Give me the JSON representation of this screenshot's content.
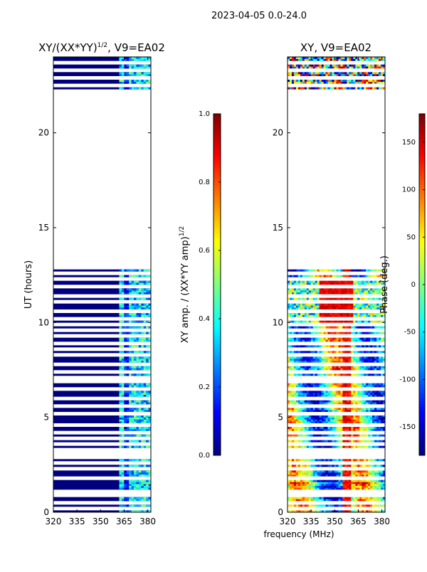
{
  "figure": {
    "suptitle": "2023-04-05 0.0-24.0",
    "shared_xlabel": "frequency (MHz)"
  },
  "chart_data": [
    {
      "type": "heatmap",
      "title": "XY/(XX*YY)",
      "title_superscript": "1/2",
      "title_suffix": ", V9=EA02",
      "xlabel": "",
      "ylabel": "UT (hours)",
      "xlim": [
        320,
        382
      ],
      "ylim": [
        0,
        24
      ],
      "x_ticks": [
        320,
        335,
        350,
        365,
        380
      ],
      "y_ticks": [
        0,
        5,
        10,
        15,
        20
      ],
      "data_gap_hours": [
        12.8,
        21.9
      ],
      "description_channels": "dark blue (~0) below ~362 MHz, higher values 362-382 MHz",
      "colorbar": {
        "label": "XY amp. / (XX*YY amp)",
        "label_superscript": "1/2",
        "range": [
          0.0,
          1.0
        ],
        "ticks": [
          "0.0",
          "0.2",
          "0.4",
          "0.6",
          "0.8",
          "1.0"
        ]
      }
    },
    {
      "type": "heatmap",
      "title": "XY, V9=EA02",
      "xlabel": "frequency (MHz)",
      "ylabel": "",
      "xlim": [
        320,
        382
      ],
      "ylim": [
        0,
        24
      ],
      "x_ticks": [
        320,
        335,
        350,
        365,
        380
      ],
      "y_ticks": [
        0,
        5,
        10,
        15,
        20
      ],
      "data_gap_hours": [
        12.8,
        21.9
      ],
      "colorbar": {
        "label": "Phase (deg.)",
        "range": [
          -180,
          180
        ],
        "ticks": [
          "-150",
          "-100",
          "-50",
          "0",
          "50",
          "100",
          "150"
        ]
      }
    }
  ],
  "colormap": [
    "#00007f",
    "#0000ff",
    "#007fff",
    "#00ffff",
    "#7fff7f",
    "#ffff00",
    "#ff7f00",
    "#ff0000",
    "#7f0000"
  ],
  "gap_rows_hours": [
    0.2,
    0.5,
    0.9,
    1.1,
    1.8,
    2.3,
    2.6,
    2.9,
    3.1,
    3.3,
    3.6,
    3.9,
    4.2,
    4.6,
    5.2,
    5.6,
    6.0,
    6.5,
    6.9,
    7.1,
    7.4,
    7.8,
    8.3,
    8.6,
    8.9,
    9.3,
    9.6,
    9.9,
    10.2,
    10.6,
    11.1,
    11.4,
    11.9,
    12.3,
    12.6,
    22.0,
    22.2,
    22.5,
    22.9,
    23.3,
    23.7
  ]
}
